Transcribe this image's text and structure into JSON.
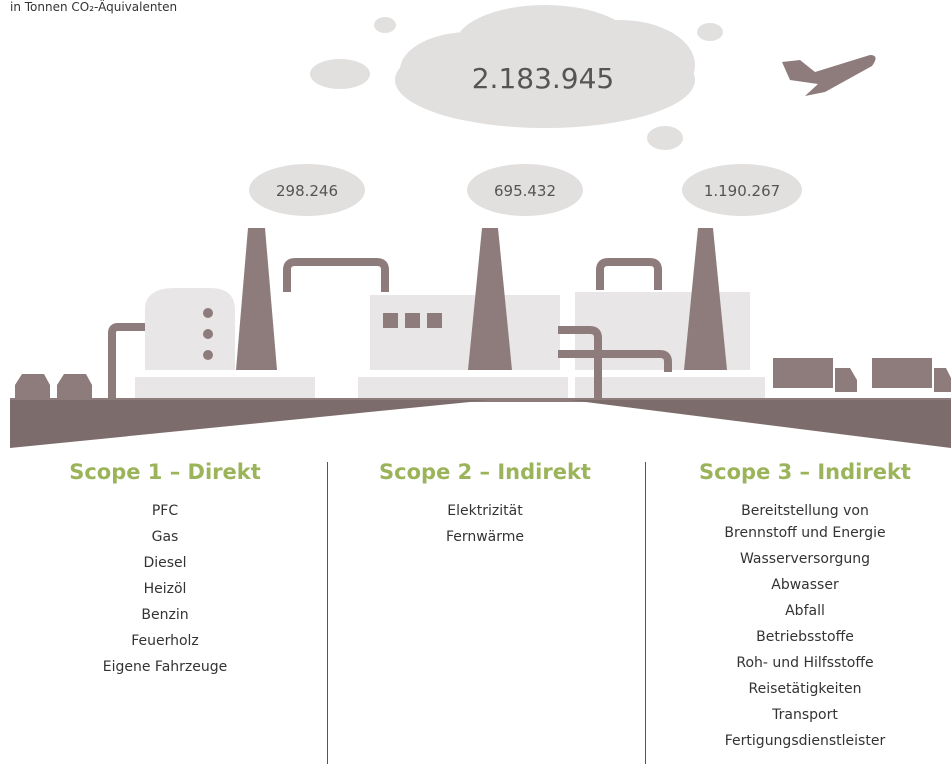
{
  "subtitle": "in Tonnen CO₂-Äquivalenten",
  "total": "2.183.945",
  "scopes": [
    {
      "value": "298.246",
      "title": "Scope 1 – Direkt",
      "items": [
        "PFC",
        "Gas",
        "Diesel",
        "Heizöl",
        "Benzin",
        "Feuerholz",
        "Eigene Fahrzeuge"
      ]
    },
    {
      "value": "695.432",
      "title": "Scope 2 – Indirekt",
      "items": [
        "Elektrizität",
        "Fernwärme"
      ]
    },
    {
      "value": "1.190.267",
      "title": "Scope 3 – Indirekt",
      "items": [
        "Bereitstellung von Brennstoff und Energie",
        "Wasserversorgung",
        "Abwasser",
        "Abfall",
        "Betriebsstoffe",
        "Roh- und Hilfsstoffe",
        "Reisetätigkeiten",
        "Transport",
        "Fertigungsdienstleister"
      ]
    }
  ]
}
